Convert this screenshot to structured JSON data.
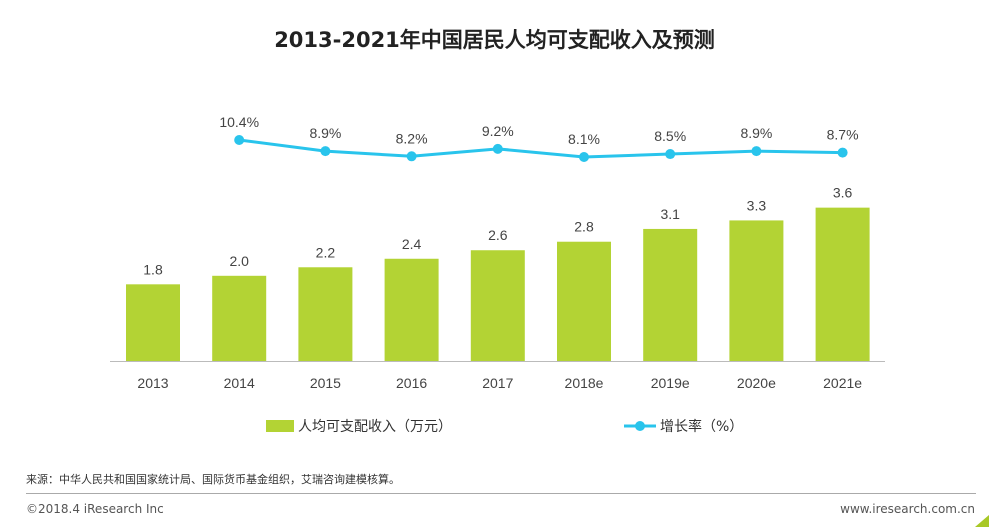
{
  "chart_data": {
    "type": "bar+line",
    "title": "2013-2021年中国居民人均可支配收入及预测",
    "categories": [
      "2013",
      "2014",
      "2015",
      "2016",
      "2017",
      "2018e",
      "2019e",
      "2020e",
      "2021e"
    ],
    "series": [
      {
        "name": "人均可支配收入（万元）",
        "type": "bar",
        "color": "#b3d334",
        "values": [
          1.8,
          2.0,
          2.2,
          2.4,
          2.6,
          2.8,
          3.1,
          3.3,
          3.6
        ],
        "labels": [
          "1.8",
          "2.0",
          "2.2",
          "2.4",
          "2.6",
          "2.8",
          "3.1",
          "3.3",
          "3.6"
        ]
      },
      {
        "name": "增长率（%）",
        "type": "line",
        "color": "#29c4ec",
        "values": [
          null,
          10.4,
          8.9,
          8.2,
          9.2,
          8.1,
          8.5,
          8.9,
          8.7
        ],
        "labels": [
          "",
          "10.4%",
          "8.9%",
          "8.2%",
          "9.2%",
          "8.1%",
          "8.5%",
          "8.9%",
          "8.7%"
        ]
      }
    ],
    "legend_placement": "bottom",
    "grid": false
  },
  "footer": {
    "source": "来源：中华人民共和国国家统计局、国际货币基金组织，艾瑞咨询建模核算。",
    "copyright": "©2018.4 iResearch Inc",
    "website": "www.iresearch.com.cn"
  }
}
